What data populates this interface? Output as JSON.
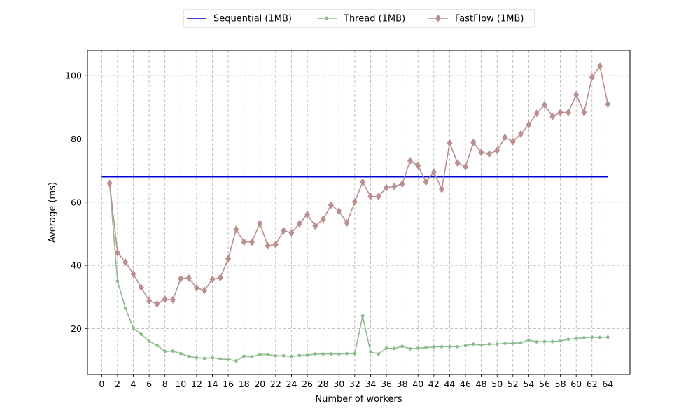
{
  "chart_data": {
    "type": "line",
    "title": "",
    "xlabel": "Number of workers",
    "ylabel": "Average (ms)",
    "xlim": [
      -1.8,
      66.8
    ],
    "ylim": [
      5.5,
      108
    ],
    "x_ticks": [
      "0",
      "2",
      "4",
      "6",
      "8",
      "10",
      "12",
      "14",
      "16",
      "18",
      "20",
      "22",
      "24",
      "26",
      "28",
      "30",
      "32",
      "34",
      "36",
      "38",
      "40",
      "42",
      "44",
      "46",
      "48",
      "50",
      "52",
      "54",
      "56",
      "58",
      "60",
      "62",
      "64"
    ],
    "y_ticks": [
      "20",
      "40",
      "60",
      "80",
      "100"
    ],
    "grid": true,
    "legend_position": "top-center",
    "series": [
      {
        "name": "Sequential (1MB)",
        "color": "#0000cc",
        "marker": "none",
        "x": [
          0,
          64
        ],
        "y": [
          68,
          68
        ]
      },
      {
        "name": "Thread (1MB)",
        "color": "#8fbc8f",
        "marker": "circle",
        "x": [
          1,
          2,
          3,
          4,
          5,
          6,
          7,
          8,
          9,
          10,
          11,
          12,
          13,
          14,
          15,
          16,
          17,
          18,
          19,
          20,
          21,
          22,
          23,
          24,
          25,
          26,
          27,
          28,
          29,
          30,
          31,
          32,
          33,
          34,
          35,
          36,
          37,
          38,
          39,
          40,
          41,
          42,
          43,
          44,
          45,
          46,
          47,
          48,
          49,
          50,
          51,
          52,
          53,
          54,
          55,
          56,
          57,
          58,
          59,
          60,
          61,
          62,
          63,
          64
        ],
        "y": [
          66,
          35,
          26.5,
          20.2,
          18.2,
          16,
          14.7,
          12.8,
          12.9,
          12.1,
          11.2,
          10.8,
          10.6,
          10.8,
          10.4,
          10.3,
          9.8,
          11.3,
          11.1,
          11.8,
          11.8,
          11.4,
          11.4,
          11.2,
          11.5,
          11.6,
          12,
          12,
          12,
          12,
          12.1,
          12.1,
          24,
          12.6,
          12,
          13.8,
          13.7,
          14.4,
          13.6,
          13.8,
          14,
          14.2,
          14.3,
          14.3,
          14.3,
          14.6,
          15.1,
          14.8,
          15.1,
          15.1,
          15.3,
          15.4,
          15.5,
          16.4,
          15.8,
          15.9,
          15.9,
          16.1,
          16.6,
          16.9,
          17.1,
          17.3,
          17.2,
          17.3
        ]
      },
      {
        "name": "FastFlow (1MB)",
        "color": "#bc8f8f",
        "marker": "diamond",
        "x": [
          1,
          2,
          3,
          4,
          5,
          6,
          7,
          8,
          9,
          10,
          11,
          12,
          13,
          14,
          15,
          16,
          17,
          18,
          19,
          20,
          21,
          22,
          23,
          24,
          25,
          26,
          27,
          28,
          29,
          30,
          31,
          32,
          33,
          34,
          35,
          36,
          37,
          38,
          39,
          40,
          41,
          42,
          43,
          44,
          45,
          46,
          47,
          48,
          49,
          50,
          51,
          52,
          53,
          54,
          55,
          56,
          57,
          58,
          59,
          60,
          61,
          62,
          63,
          64
        ],
        "y": [
          66,
          44,
          41,
          37.3,
          33,
          28.8,
          27.8,
          29.3,
          29.1,
          35.8,
          36,
          32.9,
          32.1,
          35.6,
          36.1,
          42.1,
          51.4,
          47.4,
          47.4,
          53.3,
          46.2,
          46.6,
          51,
          50.3,
          53.2,
          56.1,
          52.5,
          54.6,
          59.1,
          57.2,
          53.4,
          60.1,
          66.4,
          61.8,
          61.8,
          64.6,
          65,
          65.8,
          73.1,
          71.6,
          66.4,
          69.5,
          64.1,
          78.7,
          72.4,
          71.2,
          78.9,
          75.8,
          75.3,
          76.4,
          80.5,
          79.2,
          81.6,
          84.5,
          88.1,
          90.8,
          87.1,
          88.4,
          88.4,
          94,
          88.4,
          99.5,
          103,
          91
        ]
      }
    ]
  }
}
